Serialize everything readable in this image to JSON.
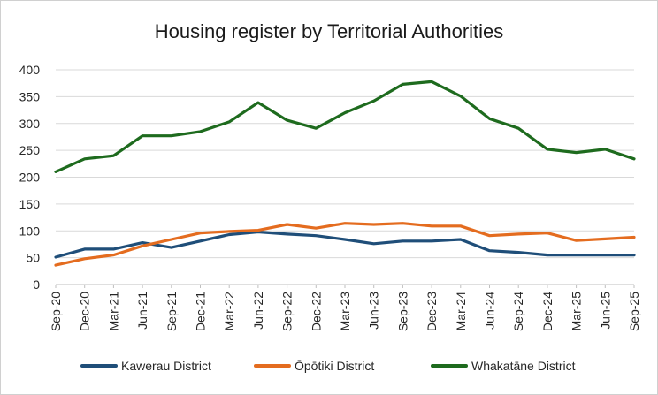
{
  "chart_data": {
    "type": "line",
    "title": "Housing register by Territorial Authorities",
    "xlabel": "",
    "ylabel": "",
    "ylim": [
      0,
      400
    ],
    "yticks": [
      0,
      50,
      100,
      150,
      200,
      250,
      300,
      350,
      400
    ],
    "grid": true,
    "legend_position": "bottom",
    "categories": [
      "Sep-20",
      "Dec-20",
      "Mar-21",
      "Jun-21",
      "Sep-21",
      "Dec-21",
      "Mar-22",
      "Jun-22",
      "Sep-22",
      "Dec-22",
      "Mar-23",
      "Jun-23",
      "Sep-23",
      "Dec-23",
      "Mar-24",
      "Jun-24",
      "Sep-24",
      "Dec-24",
      "Mar-25",
      "Jun-25",
      "Sep-25"
    ],
    "series": [
      {
        "name": "Kawerau District",
        "color": "#1f4e79",
        "values": [
          51,
          66,
          66,
          78,
          69,
          81,
          93,
          98,
          94,
          91,
          84,
          76,
          81,
          81,
          84,
          63,
          60,
          55,
          55,
          55,
          55
        ]
      },
      {
        "name": "Ōpōtiki District",
        "color": "#e46c1f",
        "values": [
          36,
          48,
          55,
          72,
          84,
          96,
          99,
          101,
          112,
          105,
          114,
          112,
          114,
          109,
          109,
          91,
          94,
          96,
          82,
          85,
          88
        ]
      },
      {
        "name": "Whakatāne District",
        "color": "#1e6b1e",
        "values": [
          210,
          234,
          240,
          277,
          277,
          285,
          303,
          339,
          306,
          291,
          320,
          342,
          373,
          378,
          351,
          309,
          291,
          252,
          246,
          252,
          234
        ]
      }
    ]
  }
}
